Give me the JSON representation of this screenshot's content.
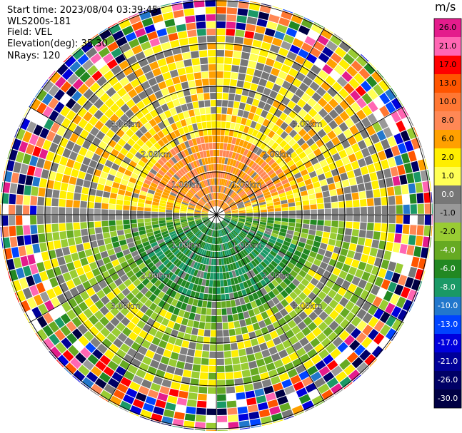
{
  "info": {
    "start_time_label": "Start time:",
    "start_time": "2023/08/04 03:39:45",
    "instrument": "WLS200s-181",
    "field_label": "Field:",
    "field": "VEL",
    "elevation_label": "Elevation(deg):",
    "elevation": "35.30",
    "nrays_label": "NRays:",
    "nrays": "120"
  },
  "rings": [
    "1.00km",
    "2.00km",
    "3.00km"
  ],
  "colorbar": {
    "unit": "m/s",
    "ticks": [
      "26.0",
      "21.0",
      "17.0",
      "13.0",
      "10.0",
      "8.0",
      "6.0",
      "2.0",
      "1.0",
      "0.0",
      "-1.0",
      "-2.0",
      "-4.0",
      "-6.0",
      "-8.0",
      "-10.0",
      "-13.0",
      "-17.0",
      "-21.0",
      "-26.0",
      "-30.0"
    ],
    "colors": [
      "#e41c8c",
      "#ff66b3",
      "#ff0000",
      "#ff5500",
      "#ff7733",
      "#ff8855",
      "#ffa000",
      "#ffee00",
      "#ffff55",
      "#777777",
      "#999999",
      "#99cc33",
      "#66aa22",
      "#228822",
      "#1a9966",
      "#2277cc",
      "#0044ff",
      "#0000dd",
      "#000099",
      "#000066",
      "#000044"
    ]
  }
}
